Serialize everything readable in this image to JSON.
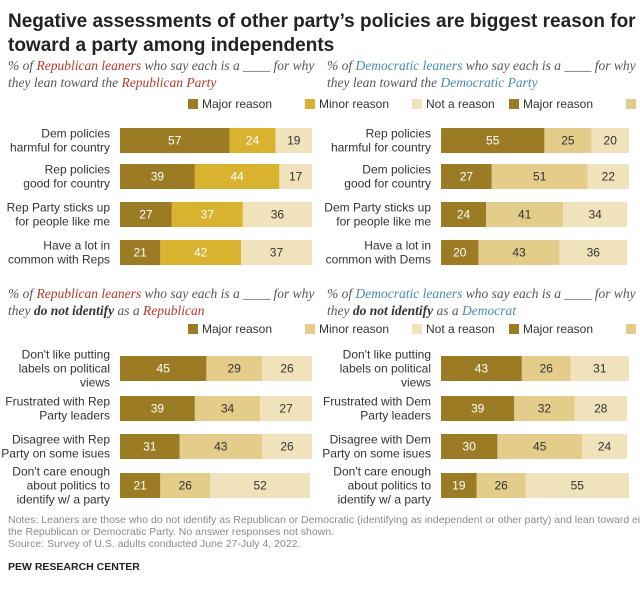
{
  "title_line1": "Negative assessments of other party’s policies are biggest reason for leaning",
  "title_line2": "toward a party among independents",
  "colors": {
    "major": "#9b7c24",
    "minor_light": "#e4cc8a",
    "minor_dark": "#d9b22f",
    "not": "#f0e3bb",
    "text_dark_bg": "#ffffff",
    "text_light_bg": "#333333"
  },
  "legend": {
    "major": "Major reason",
    "minor": "Minor reason",
    "not": "Not a reason"
  },
  "chart_data": [
    {
      "type": "bar",
      "stacked": true,
      "subtitle": {
        "l1_pre": "% of ",
        "l1_colored": "Republican leaners",
        "l1_post": " who say each is a ____ for why",
        "l2_pre": "they lean toward the ",
        "l2_colored": "Republican Party"
      },
      "categories": [
        [
          "Dem policies",
          "harmful for country"
        ],
        [
          "Rep policies",
          "good for country"
        ],
        [
          "Rep Party sticks up",
          "for people like me"
        ],
        [
          "Have a lot in",
          "common with Reps"
        ]
      ],
      "series": [
        {
          "name": "Major reason",
          "values": [
            57,
            39,
            27,
            21
          ]
        },
        {
          "name": "Minor reason",
          "values": [
            24,
            44,
            37,
            42
          ]
        },
        {
          "name": "Not a reason",
          "values": [
            19,
            17,
            36,
            37
          ]
        }
      ]
    },
    {
      "type": "bar",
      "stacked": true,
      "subtitle": {
        "l1_pre": "% of ",
        "l1_colored": "Democratic leaners",
        "l1_post": " who say each is a ____ for why",
        "l2_pre": "they lean toward the ",
        "l2_colored": "Democratic Party"
      },
      "categories": [
        [
          "Rep policies",
          "harmful for country"
        ],
        [
          "Dem policies",
          "good for country"
        ],
        [
          "Dem Party sticks up",
          "for people like me"
        ],
        [
          "Have a lot in",
          "common with Dems"
        ]
      ],
      "series": [
        {
          "name": "Major reason",
          "values": [
            55,
            27,
            24,
            20
          ]
        },
        {
          "name": "Minor reason",
          "values": [
            25,
            51,
            41,
            43
          ]
        },
        {
          "name": "Not a reason",
          "values": [
            20,
            22,
            34,
            36
          ]
        }
      ]
    },
    {
      "type": "bar",
      "stacked": true,
      "subtitle": {
        "l1_pre": "% of ",
        "l1_colored": "Republican leaners",
        "l1_post": " who say each is a ____ for why",
        "l2_pre": "they ",
        "l2_strong": "do not identify",
        "l2_mid": " as a ",
        "l2_colored": "Republican"
      },
      "categories": [
        [
          "Don't like putting",
          "labels on political",
          "views"
        ],
        [
          "Frustrated with Rep",
          "Party leaders"
        ],
        [
          "Disagree with Rep",
          "Party on some isues"
        ],
        [
          "Don't care enough",
          "about politics to",
          "identify w/ a party"
        ]
      ],
      "series": [
        {
          "name": "Major reason",
          "values": [
            45,
            39,
            31,
            21
          ]
        },
        {
          "name": "Minor reason",
          "values": [
            29,
            34,
            43,
            26
          ]
        },
        {
          "name": "Not a reason",
          "values": [
            26,
            27,
            26,
            52
          ]
        }
      ]
    },
    {
      "type": "bar",
      "stacked": true,
      "subtitle": {
        "l1_pre": "% of ",
        "l1_colored": "Democratic leaners",
        "l1_post": " who say each is a ____ for why",
        "l2_pre": "they ",
        "l2_strong": "do not identify",
        "l2_mid": " as a ",
        "l2_colored": "Democrat"
      },
      "categories": [
        [
          "Don't like putting",
          "labels on political",
          "views"
        ],
        [
          "Frustrated with Dem",
          "Party leaders"
        ],
        [
          "Disagree with Dem",
          "Party on some isues"
        ],
        [
          "Don't care enough",
          "about politics to",
          "identify w/ a party"
        ]
      ],
      "series": [
        {
          "name": "Major reason",
          "values": [
            43,
            39,
            30,
            19
          ]
        },
        {
          "name": "Minor reason",
          "values": [
            26,
            32,
            45,
            26
          ]
        },
        {
          "name": "Not a reason",
          "values": [
            31,
            28,
            24,
            55
          ]
        }
      ]
    }
  ],
  "notes": [
    "Notes: Leaners are those who do not identify as Republican or Democratic (identifying as independent or other party) and lean toward either",
    "the Republican or Democratic Party. No answer responses not shown.",
    "Source: Survey of U.S. adults conducted June 27-July 4, 2022."
  ],
  "brand": "PEW RESEARCH CENTER"
}
